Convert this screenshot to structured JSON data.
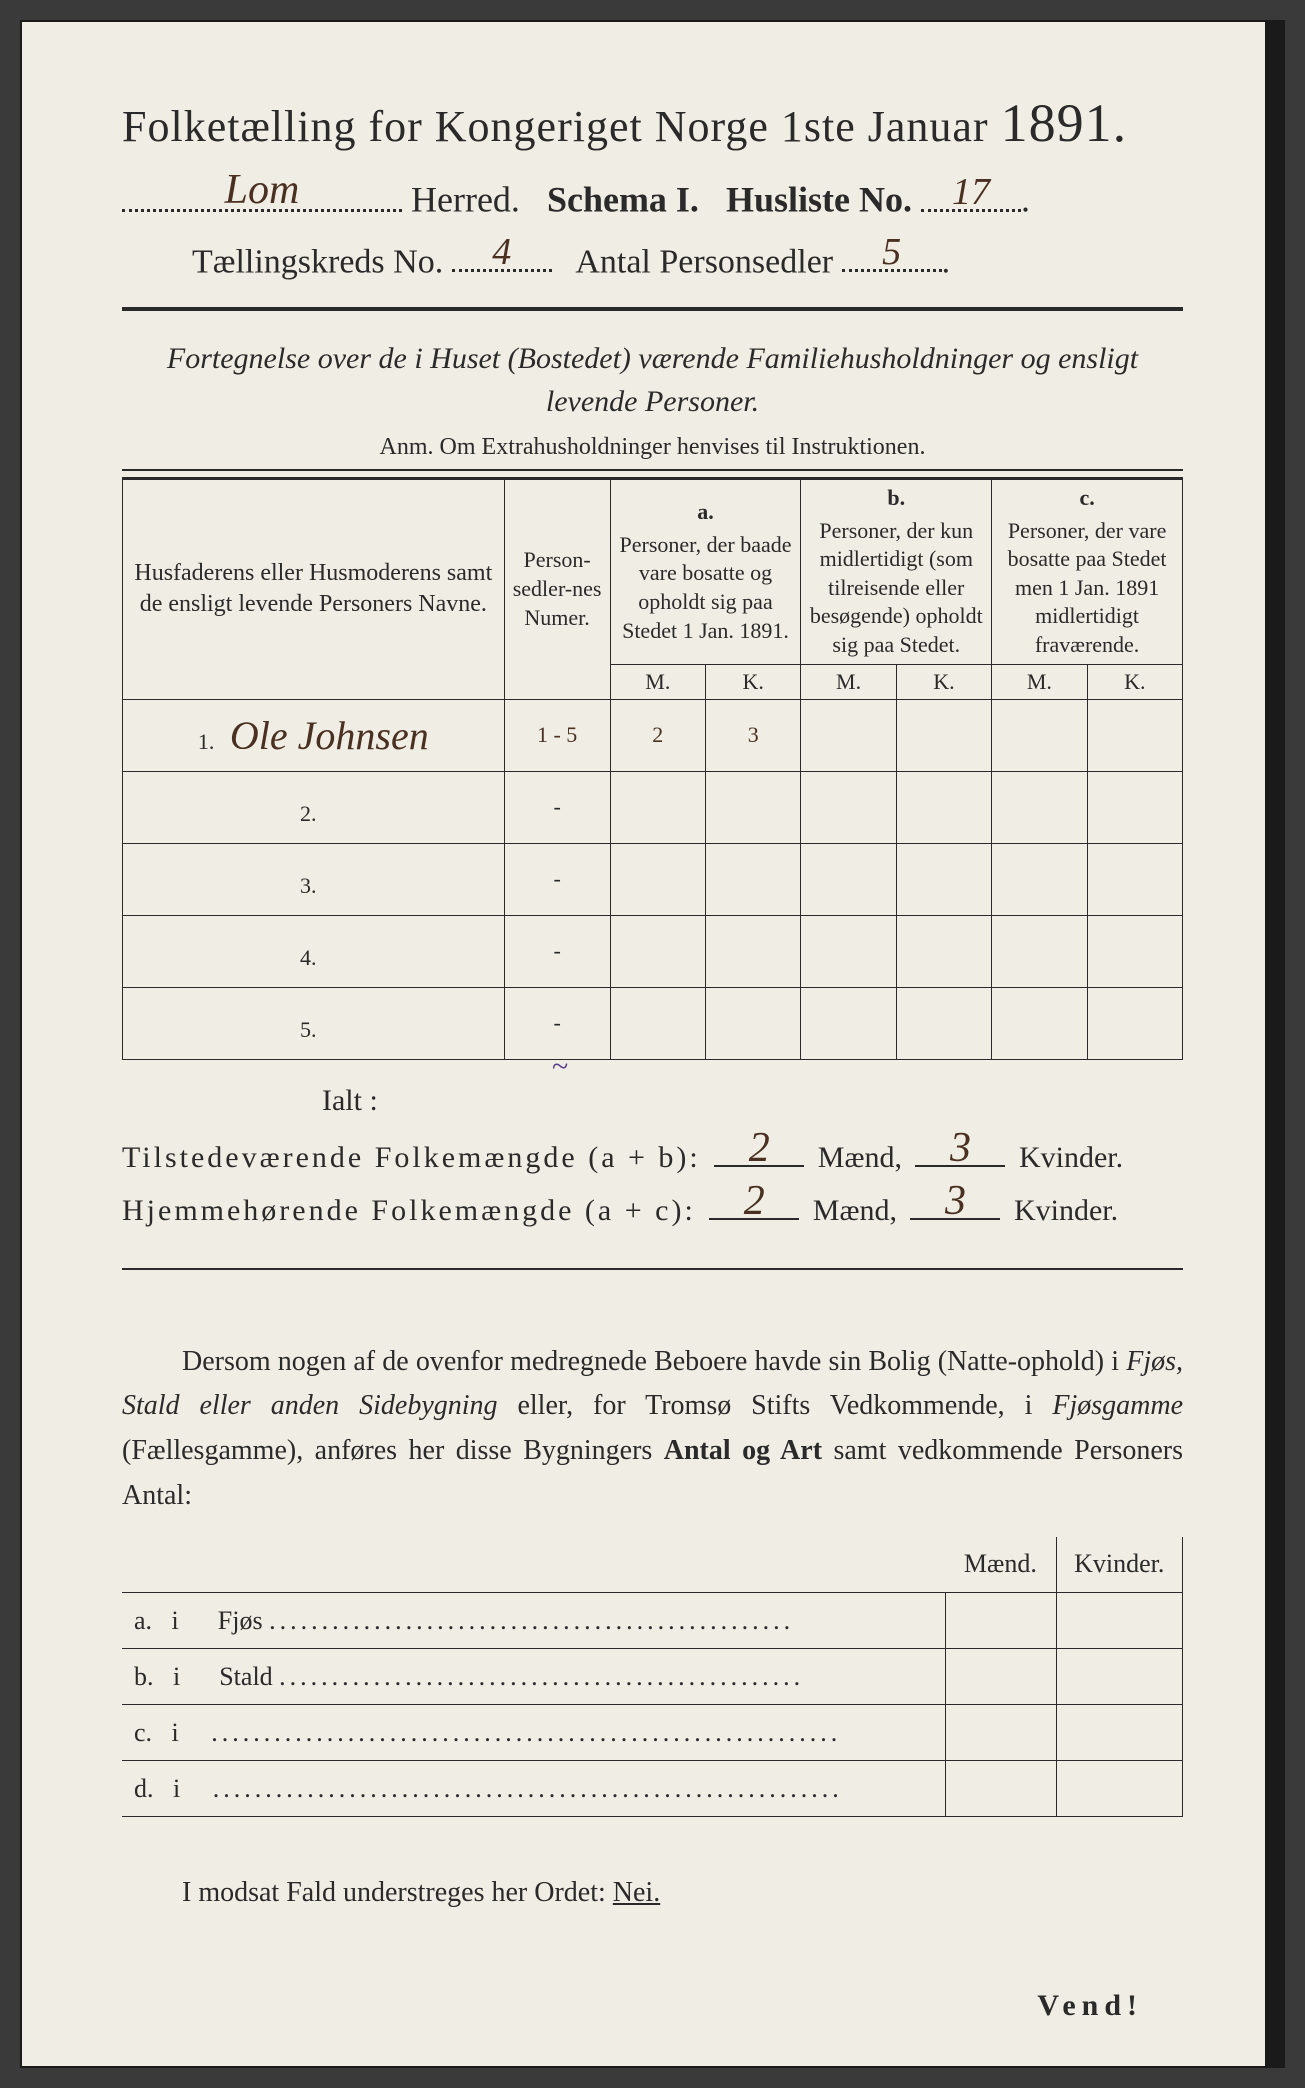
{
  "colors": {
    "page_bg": "#f0ede4",
    "ink": "#2a2a2a",
    "handwriting": "#4a3020",
    "edge": "#1a1a1a",
    "outer_bg": "#3a3a3a"
  },
  "title": {
    "text_a": "Folketælling for Kongeriget Norge 1ste Januar",
    "year": "1891."
  },
  "line2": {
    "herred_value": "Lom",
    "herred_label": "Herred.",
    "schema_label": "Schema I.",
    "husliste_label": "Husliste No.",
    "husliste_value": "17"
  },
  "line3": {
    "kreds_label": "Tællingskreds No.",
    "kreds_value": "4",
    "antal_label": "Antal Personsedler",
    "antal_value": "5"
  },
  "intro": "Fortegnelse over de i Huset (Bostedet) værende Familiehusholdninger og ensligt levende Personer.",
  "anm": "Anm.  Om Extrahusholdninger henvises til Instruktionen.",
  "table": {
    "col1": "Husfaderens eller Husmoderens samt de ensligt levende Personers Navne.",
    "col2": "Person-sedler-nes Numer.",
    "col_a_label": "a.",
    "col_a": "Personer, der baade vare bosatte og opholdt sig paa Stedet 1 Jan. 1891.",
    "col_b_label": "b.",
    "col_b": "Personer, der kun midlertidigt (som tilreisende eller besøgende) opholdt sig paa Stedet.",
    "col_c_label": "c.",
    "col_c": "Personer, der vare bosatte paa Stedet men 1 Jan. 1891 midlertidigt fraværende.",
    "m": "M.",
    "k": "K.",
    "rows": [
      {
        "n": "1.",
        "name": "Ole Johnsen",
        "sedler": "1 - 5",
        "a_m": "2",
        "a_k": "3"
      },
      {
        "n": "2.",
        "name": "",
        "sedler": "-"
      },
      {
        "n": "3.",
        "name": "",
        "sedler": "-"
      },
      {
        "n": "4.",
        "name": "",
        "sedler": "-"
      },
      {
        "n": "5.",
        "name": "",
        "sedler": "-"
      }
    ]
  },
  "ialt": "Ialt :",
  "sum1": {
    "label": "Tilstedeværende Folkemængde (a + b):",
    "m": "2",
    "m_label": "Mænd,",
    "k": "3",
    "k_label": "Kvinder."
  },
  "sum2": {
    "label": "Hjemmehørende Folkemængde (a + c):",
    "m": "2",
    "m_label": "Mænd,",
    "k": "3",
    "k_label": "Kvinder."
  },
  "para": "Dersom nogen af de ovenfor medregnede Beboere havde sin Bolig (Natte-ophold) i Fjøs, Stald eller anden Sidebygning eller, for Tromsø Stifts Vedkommende, i Fjøsgamme (Fællesgamme), anføres her disse Bygningers Antal og Art samt vedkommende Personers Antal:",
  "small_table": {
    "m": "Mænd.",
    "k": "Kvinder.",
    "rows": [
      {
        "a": "a.",
        "i": "i",
        "label": "Fjøs"
      },
      {
        "a": "b.",
        "i": "i",
        "label": "Stald"
      },
      {
        "a": "c.",
        "i": "i",
        "label": ""
      },
      {
        "a": "d.",
        "i": "i",
        "label": ""
      }
    ]
  },
  "nei_line_a": "I modsat Fald understreges her Ordet:",
  "nei_line_b": "Nei.",
  "vend": "Vend!"
}
